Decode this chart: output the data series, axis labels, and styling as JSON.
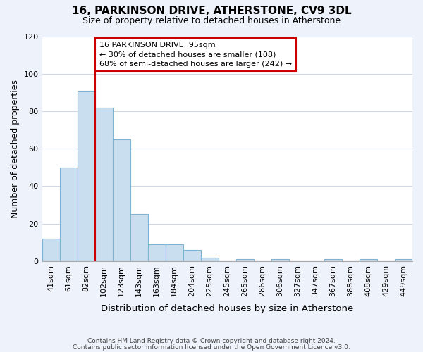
{
  "title": "16, PARKINSON DRIVE, ATHERSTONE, CV9 3DL",
  "subtitle": "Size of property relative to detached houses in Atherstone",
  "xlabel": "Distribution of detached houses by size in Atherstone",
  "ylabel": "Number of detached properties",
  "bar_labels": [
    "41sqm",
    "61sqm",
    "82sqm",
    "102sqm",
    "123sqm",
    "143sqm",
    "163sqm",
    "184sqm",
    "204sqm",
    "225sqm",
    "245sqm",
    "265sqm",
    "286sqm",
    "306sqm",
    "327sqm",
    "347sqm",
    "367sqm",
    "388sqm",
    "408sqm",
    "429sqm",
    "449sqm"
  ],
  "bar_heights": [
    12,
    50,
    91,
    82,
    65,
    25,
    9,
    9,
    6,
    2,
    0,
    1,
    0,
    1,
    0,
    0,
    1,
    0,
    1,
    0,
    1
  ],
  "bar_color": "#c9dff0",
  "bar_edge_color": "#7fb3d3",
  "ylim": [
    0,
    120
  ],
  "yticks": [
    0,
    20,
    40,
    60,
    80,
    100,
    120
  ],
  "property_line_label": "16 PARKINSON DRIVE: 95sqm",
  "annotation_line1": "← 30% of detached houses are smaller (108)",
  "annotation_line2": "68% of semi-detached houses are larger (242) →",
  "footer_line1": "Contains HM Land Registry data © Crown copyright and database right 2024.",
  "footer_line2": "Contains public sector information licensed under the Open Government Licence v3.0.",
  "background_color": "#eef2fb",
  "plot_background_color": "#ffffff"
}
